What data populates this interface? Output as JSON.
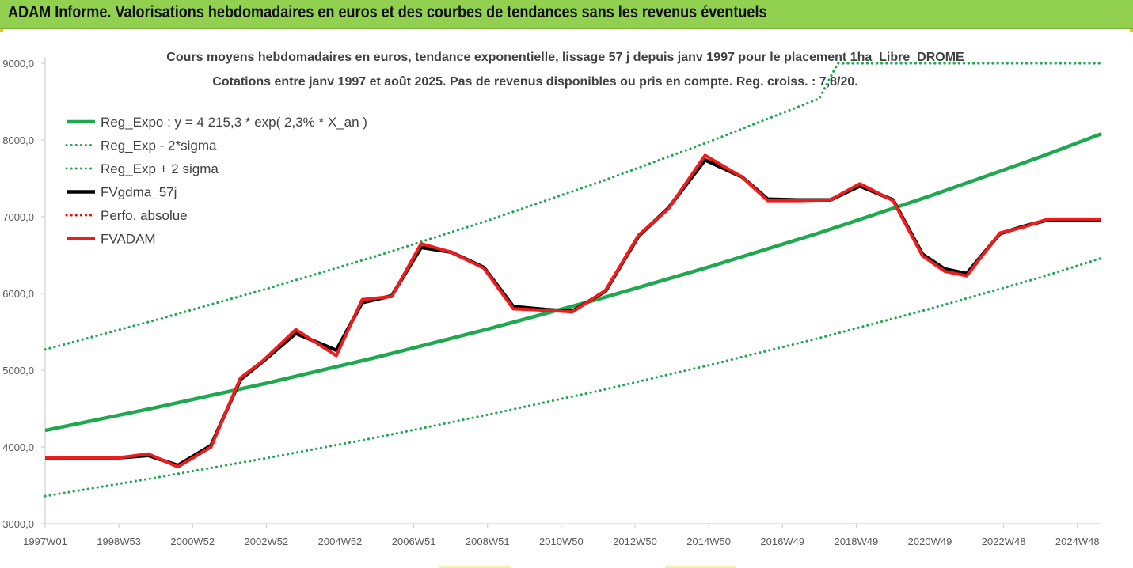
{
  "banner": {
    "title": "ADAM Informe. Valorisations hebdomadaires en euros et des courbes de tendances sans les revenus éventuels",
    "color": "#92d050"
  },
  "chart_data": {
    "type": "line",
    "title_line1": "Cours moyens hebdomadaires en euros, tendance exponentielle, lissage 57 j depuis janv 1997 pour le placement 1ha_Libre_DROME",
    "title_line2": "Cotations entre janv 1997 et août 2025. Pas de revenus disponibles ou pris en compte. Reg. croiss. : 7,8/20.",
    "xlabel": "",
    "ylabel": "",
    "ylim": [
      3000,
      9000
    ],
    "xlim": [
      1997.0,
      2025.65
    ],
    "grid": false,
    "legend_position": "top-left",
    "y_ticks": [
      {
        "value": 3000,
        "label": "3000,0"
      },
      {
        "value": 4000,
        "label": "4000,0"
      },
      {
        "value": 5000,
        "label": "5000,0"
      },
      {
        "value": 6000,
        "label": "6000,0"
      },
      {
        "value": 7000,
        "label": "7000,0"
      },
      {
        "value": 8000,
        "label": "8000,0"
      },
      {
        "value": 9000,
        "label": "9000,0"
      }
    ],
    "x_ticks": [
      {
        "value": 1997.0,
        "label": "1997W01"
      },
      {
        "value": 1999.0,
        "label": "1998W53"
      },
      {
        "value": 2001.0,
        "label": "2000W52"
      },
      {
        "value": 2003.0,
        "label": "2002W52"
      },
      {
        "value": 2005.0,
        "label": "2004W52"
      },
      {
        "value": 2007.0,
        "label": "2006W51"
      },
      {
        "value": 2009.0,
        "label": "2008W51"
      },
      {
        "value": 2011.0,
        "label": "2010W50"
      },
      {
        "value": 2013.0,
        "label": "2012W50"
      },
      {
        "value": 2015.0,
        "label": "2014W50"
      },
      {
        "value": 2017.0,
        "label": "2016W49"
      },
      {
        "value": 2019.0,
        "label": "2018W49"
      },
      {
        "value": 2021.0,
        "label": "2020W49"
      },
      {
        "value": 2023.0,
        "label": "2022W48"
      },
      {
        "value": 2025.0,
        "label": "2024W48"
      }
    ],
    "series": [
      {
        "name": "Reg_Expo : y = 4 215,3 * exp( 2,3% *  X_an )",
        "color": "#1fa84f",
        "style": "solid",
        "x": [
          1997.0,
          2000.0,
          2003.0,
          2006.0,
          2009.0,
          2012.0,
          2015.0,
          2018.0,
          2021.0,
          2024.0,
          2025.65
        ],
        "y": [
          4215,
          4513,
          4830,
          5170,
          5535,
          5925,
          6345,
          6790,
          7270,
          7780,
          8080
        ]
      },
      {
        "name": "Reg_Exp - 2*sigma",
        "color": "#1fa84f",
        "style": "dotted",
        "x": [
          1997.0,
          2000.0,
          2003.0,
          2006.0,
          2009.0,
          2012.0,
          2015.0,
          2018.0,
          2021.0,
          2024.0,
          2025.65
        ],
        "y": [
          3360,
          3600,
          3855,
          4125,
          4420,
          4730,
          5065,
          5420,
          5800,
          6210,
          6460
        ]
      },
      {
        "name": "Reg_Exp + 2 sigma",
        "color": "#1fa84f",
        "style": "dotted",
        "x": [
          1997.0,
          2000.0,
          2003.0,
          2006.0,
          2009.0,
          2012.0,
          2015.0,
          2018.0,
          2018.5,
          2025.65
        ],
        "y": [
          5270,
          5655,
          6060,
          6490,
          6950,
          7445,
          7975,
          8540,
          9000,
          9000
        ]
      },
      {
        "name": "FVgdma_57j",
        "color": "#000000",
        "style": "solid",
        "x": [
          1997.0,
          1998.0,
          1999.0,
          1999.8,
          2000.6,
          2001.5,
          2002.3,
          2002.9,
          2003.8,
          2004.9,
          2005.6,
          2006.4,
          2007.2,
          2008.0,
          2008.9,
          2009.7,
          2010.6,
          2011.3,
          2012.2,
          2013.1,
          2013.9,
          2014.9,
          2015.9,
          2016.6,
          2017.4,
          2018.3,
          2019.1,
          2020.0,
          2020.8,
          2021.4,
          2022.0,
          2022.9,
          2023.5,
          2024.2,
          2025.1,
          2025.65
        ],
        "y": [
          3860,
          3860,
          3860,
          3890,
          3760,
          4020,
          4880,
          5110,
          5480,
          5260,
          5880,
          5970,
          6600,
          6540,
          6340,
          5830,
          5790,
          5770,
          6030,
          6750,
          7110,
          7740,
          7520,
          7230,
          7220,
          7220,
          7400,
          7220,
          6510,
          6320,
          6260,
          6780,
          6870,
          6960,
          6960,
          6960
        ]
      },
      {
        "name": "Perfo. absolue",
        "color": "#ff0000",
        "style": "dotted",
        "x": [],
        "y": []
      },
      {
        "name": "FVADAM",
        "color": "#ee1c1c",
        "style": "solid",
        "x": [
          1997.0,
          1998.0,
          1999.0,
          1999.8,
          2000.6,
          2001.5,
          2002.3,
          2002.9,
          2003.8,
          2004.9,
          2005.6,
          2006.4,
          2007.2,
          2008.0,
          2008.9,
          2009.7,
          2010.6,
          2011.3,
          2012.2,
          2013.1,
          2013.9,
          2014.9,
          2015.9,
          2016.6,
          2017.4,
          2018.3,
          2019.1,
          2020.0,
          2020.8,
          2021.4,
          2022.0,
          2022.9,
          2023.5,
          2024.2,
          2025.1,
          2025.65
        ],
        "y": [
          3860,
          3860,
          3860,
          3910,
          3740,
          4000,
          4900,
          5120,
          5530,
          5190,
          5920,
          5960,
          6650,
          6540,
          6330,
          5800,
          5780,
          5760,
          6040,
          6760,
          7100,
          7800,
          7520,
          7210,
          7210,
          7220,
          7430,
          7210,
          6490,
          6290,
          6230,
          6790,
          6860,
          6970,
          6970,
          6970
        ]
      }
    ]
  }
}
